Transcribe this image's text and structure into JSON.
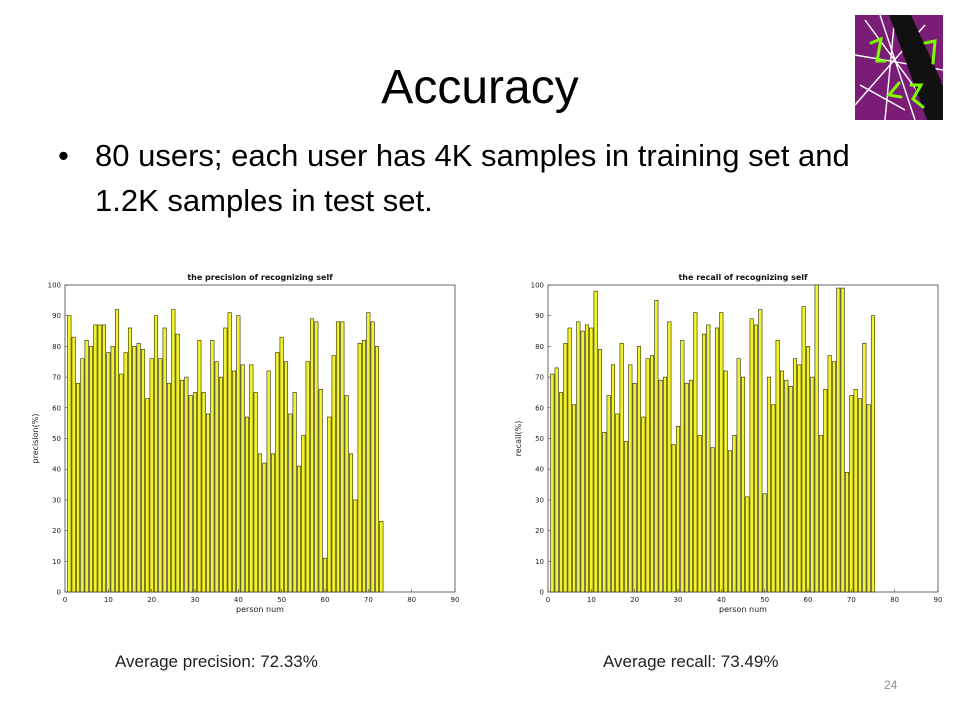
{
  "slide": {
    "title": "Accuracy",
    "bullet": "80 users; each user has 4K samples in training set and 1.2K samples in test set.",
    "page_number": "24"
  },
  "captions": {
    "precision": "Average precision: 72.33%",
    "recall": "Average recall: 73.49%"
  },
  "colors": {
    "bar_fill": "#f2f22e",
    "bar_stroke": "#2b2b00",
    "logo_background": "#7a1d76",
    "logo_lines": "#7cfc00"
  },
  "chart_data": [
    {
      "type": "bar",
      "title": "the precision of recognizing self",
      "xlabel": "person num",
      "ylabel": "precision(%)",
      "xlim": [
        0,
        90
      ],
      "ylim": [
        0,
        100
      ],
      "xticks": [
        0,
        10,
        20,
        30,
        40,
        50,
        60,
        70,
        80,
        90
      ],
      "yticks": [
        0,
        10,
        20,
        30,
        40,
        50,
        60,
        70,
        80,
        90,
        100
      ],
      "grid": false,
      "x": [
        1,
        2,
        3,
        4,
        5,
        6,
        7,
        8,
        9,
        10,
        11,
        12,
        13,
        14,
        15,
        16,
        17,
        18,
        19,
        20,
        21,
        22,
        23,
        24,
        25,
        26,
        27,
        28,
        29,
        30,
        31,
        32,
        33,
        34,
        35,
        36,
        37,
        38,
        39,
        40,
        41,
        42,
        43,
        44,
        45,
        46,
        47,
        48,
        49,
        50,
        51,
        52,
        53,
        54,
        55,
        56,
        57,
        58,
        59,
        60,
        61,
        62,
        63,
        64,
        65,
        66,
        67,
        68,
        69,
        70,
        71,
        72,
        73,
        74,
        75,
        76,
        77,
        78,
        79,
        80
      ],
      "values": [
        90,
        83,
        68,
        76,
        82,
        80,
        87,
        87,
        87,
        78,
        80,
        92,
        71,
        78,
        86,
        80,
        81,
        79,
        63,
        76,
        90,
        76,
        86,
        68,
        92,
        84,
        69,
        70,
        64,
        65,
        82,
        65,
        58,
        82,
        75,
        70,
        86,
        91,
        72,
        90,
        74,
        57,
        74,
        65,
        45,
        42,
        72,
        45,
        78,
        83,
        75,
        58,
        65,
        41,
        51,
        75,
        89,
        88,
        66,
        11,
        57,
        77,
        88,
        88,
        64,
        45,
        30,
        81,
        82,
        91,
        88,
        80,
        23,
        0,
        0,
        0,
        0,
        0,
        0,
        0
      ]
    },
    {
      "type": "bar",
      "title": "the recall of recognizing self",
      "xlabel": "person num",
      "ylabel": "recall(%)",
      "xlim": [
        0,
        90
      ],
      "ylim": [
        0,
        100
      ],
      "xticks": [
        0,
        10,
        20,
        30,
        40,
        50,
        60,
        70,
        80,
        90
      ],
      "yticks": [
        0,
        10,
        20,
        30,
        40,
        50,
        60,
        70,
        80,
        90,
        100
      ],
      "grid": false,
      "x": [
        1,
        2,
        3,
        4,
        5,
        6,
        7,
        8,
        9,
        10,
        11,
        12,
        13,
        14,
        15,
        16,
        17,
        18,
        19,
        20,
        21,
        22,
        23,
        24,
        25,
        26,
        27,
        28,
        29,
        30,
        31,
        32,
        33,
        34,
        35,
        36,
        37,
        38,
        39,
        40,
        41,
        42,
        43,
        44,
        45,
        46,
        47,
        48,
        49,
        50,
        51,
        52,
        53,
        54,
        55,
        56,
        57,
        58,
        59,
        60,
        61,
        62,
        63,
        64,
        65,
        66,
        67,
        68,
        69,
        70,
        71,
        72,
        73,
        74,
        75,
        76,
        77,
        78,
        79,
        80
      ],
      "values": [
        71,
        73,
        65,
        81,
        86,
        61,
        88,
        85,
        87,
        86,
        98,
        79,
        52,
        64,
        74,
        58,
        81,
        49,
        74,
        68,
        80,
        57,
        76,
        77,
        95,
        69,
        70,
        88,
        48,
        54,
        82,
        68,
        69,
        91,
        51,
        84,
        87,
        47,
        86,
        91,
        72,
        46,
        51,
        76,
        70,
        31,
        89,
        87,
        92,
        32,
        70,
        61,
        82,
        72,
        69,
        67,
        76,
        74,
        93,
        80,
        70,
        100,
        51,
        66,
        77,
        75,
        99,
        99,
        39,
        64,
        66,
        63,
        81,
        61,
        90,
        0,
        0,
        0,
        0,
        0
      ]
    }
  ]
}
